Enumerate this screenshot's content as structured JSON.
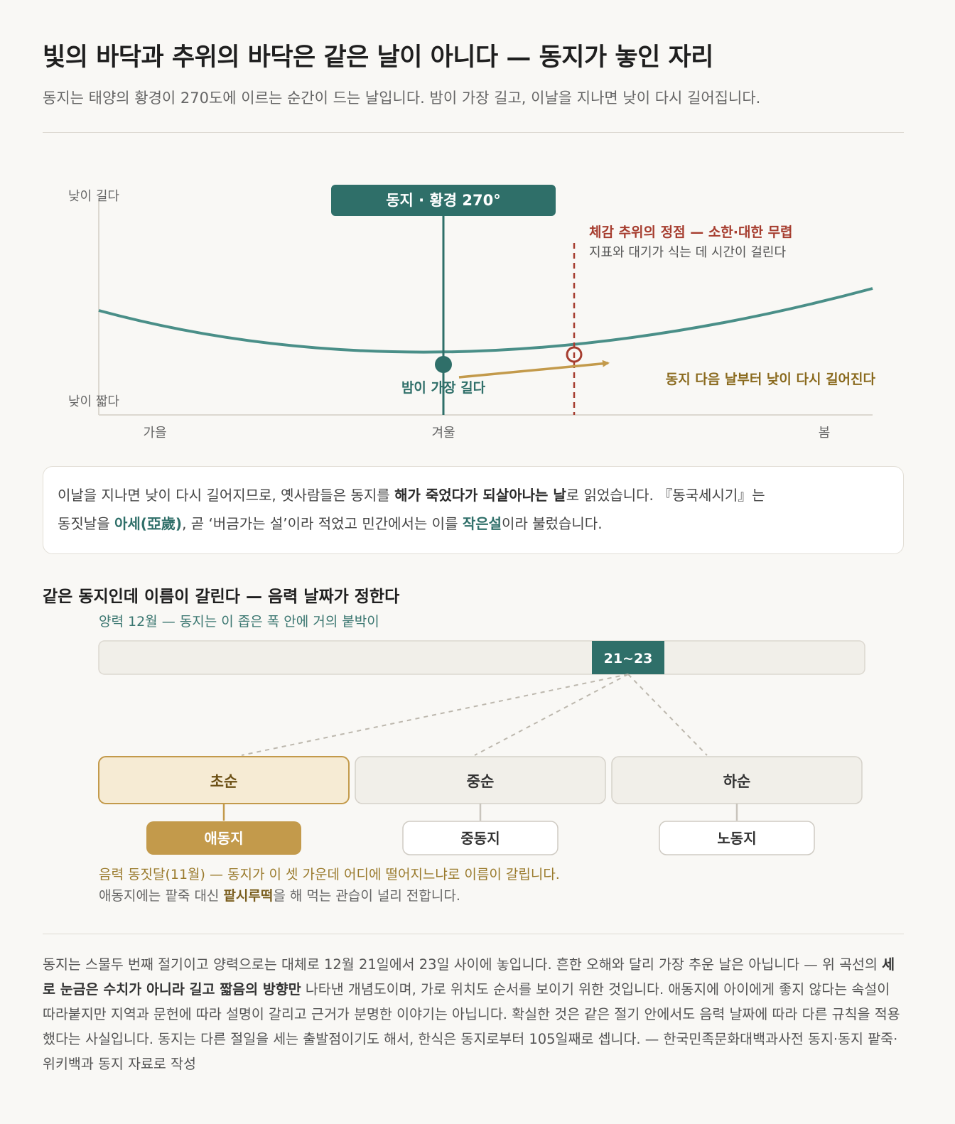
{
  "header": {
    "title": "빛의 바닥과 추위의 바닥은 같은 날이 아니다 — 동지가 놓인 자리",
    "subtitle": "동지는 태양의 황경이 270도에 이르는 순간이 드는 날입니다. 밤이 가장 길고, 이날을 지나면 낮이 다시 길어집니다."
  },
  "diagram": {
    "y_top_label": "낮이 길다",
    "y_bottom_label": "낮이 짧다",
    "x_labels": [
      "가을",
      "겨울",
      "봄"
    ],
    "solstice_badge": "동지 · 황경 270°",
    "min_label": "밤이 가장 길다",
    "cold_title": "체감 추위의 정점 — 소한·대한 무렵",
    "cold_sub": "지표와 대기가 식는 데 시간이 걸린다",
    "arrow_label": "동지 다음 날부터 낮이 다시 길어진다",
    "colors": {
      "teal": "#2f6f69",
      "curve": "#4a8f88",
      "red": "#a63d2f",
      "gold": "#c39a4b"
    }
  },
  "callout": {
    "p1": "이날을 지나면 낮이 다시 길어지므로, 옛사람들은 동지를 ",
    "b1": "해가 죽었다가 되살아나는 날",
    "p2": "로 읽었습니다. 『동국세시기』는",
    "p3": "동짓날을 ",
    "g1": "아세(亞歲)",
    "p4": ", 곧 ‘버금가는 설’이라 적었고 민간에서는 이를 ",
    "g2": "작은설",
    "p5": "이라 불렀습니다."
  },
  "calendar": {
    "section_title": "같은 동지인데 이름이 갈린다 — 음력 날짜가 정한다",
    "bar_caption": "양력 12월 — 동지는 이 좁은 폭 안에 거의 붙박이",
    "range_label": "21~23",
    "periods": [
      {
        "label": "초순",
        "name": "애동지",
        "highlight": true
      },
      {
        "label": "중순",
        "name": "중동지",
        "highlight": false
      },
      {
        "label": "하순",
        "name": "노동지",
        "highlight": false
      }
    ],
    "note1": "음력 동짓달(11월) — 동지가 이 셋 가운데 어디에 떨어지느냐로 이름이 갈립니다.",
    "note2_a": "애동지에는 팥죽 대신 ",
    "note2_b": "팥시루떡",
    "note2_c": "을 해 먹는 관습이 널리 전합니다."
  },
  "footer": {
    "f1": "동지는 스물두 번째 절기이고 양력으로는 대체로 12월 21일에서 23일 사이에 놓입니다. 흔한 오해와 달리 가장 추운 날은 아닙니다 — 위 곡선의 ",
    "b1": "세로 눈금은 수치가 아니라 길고 짧음의 방향만",
    "f2": " 나타낸 개념도이며, 가로 위치도 순서를 보이기 위한 것입니다. 애동지에 아이에게 좋지 않다는 속설이 따라붙지만 지역과 문헌에 따라 설명이 갈리고 근거가 분명한 이야기는 아닙니다. 확실한 것은 같은 절기 안에서도 음력 날짜에 따라 다른 규칙을 적용했다는 사실입니다. 동지는 다른 절일을 세는 출발점이기도 해서, 한식은 동지로부터 105일째로 셉니다. — 한국민족문화대백과사전 동지·동지 팥죽·위키백과 동지 자료로 작성"
  }
}
